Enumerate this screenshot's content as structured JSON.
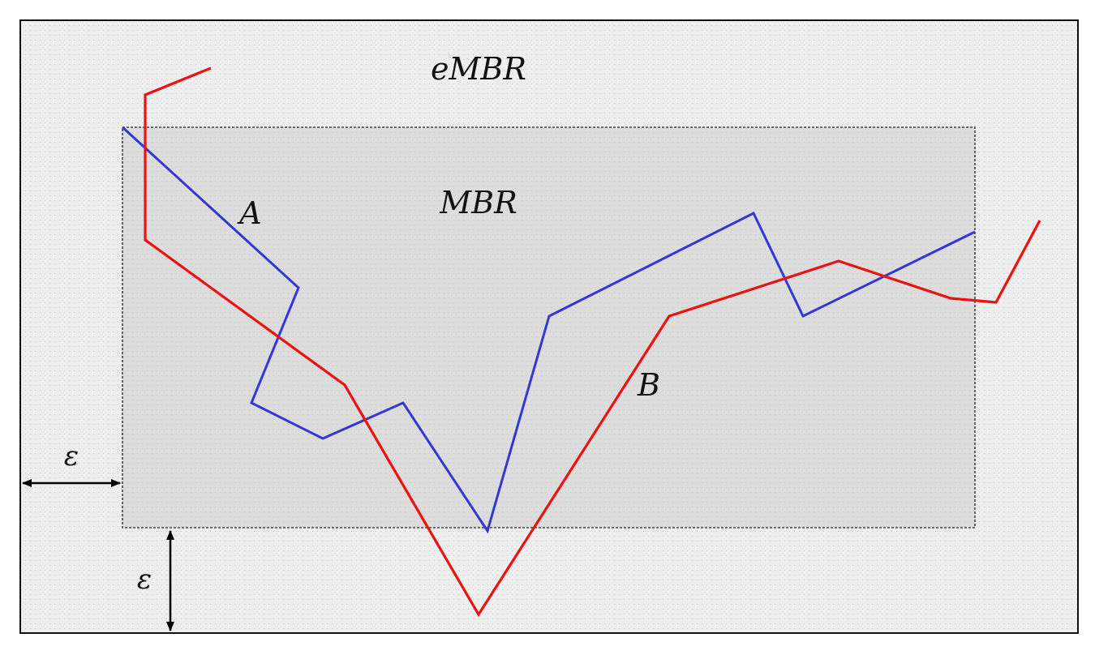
{
  "labels": {
    "outer_region": "eMBR",
    "inner_region": "MBR",
    "series_a": "A",
    "series_b": "B",
    "epsilon_horizontal": "ε",
    "epsilon_vertical": "ε"
  },
  "colors": {
    "outer_fill": "#eeeeee",
    "inner_fill": "#dcdcdc",
    "outer_border": "#111111",
    "inner_border": "#444444",
    "series_a": "#3535d9",
    "series_b": "#ee1111",
    "arrow": "#000000"
  }
}
